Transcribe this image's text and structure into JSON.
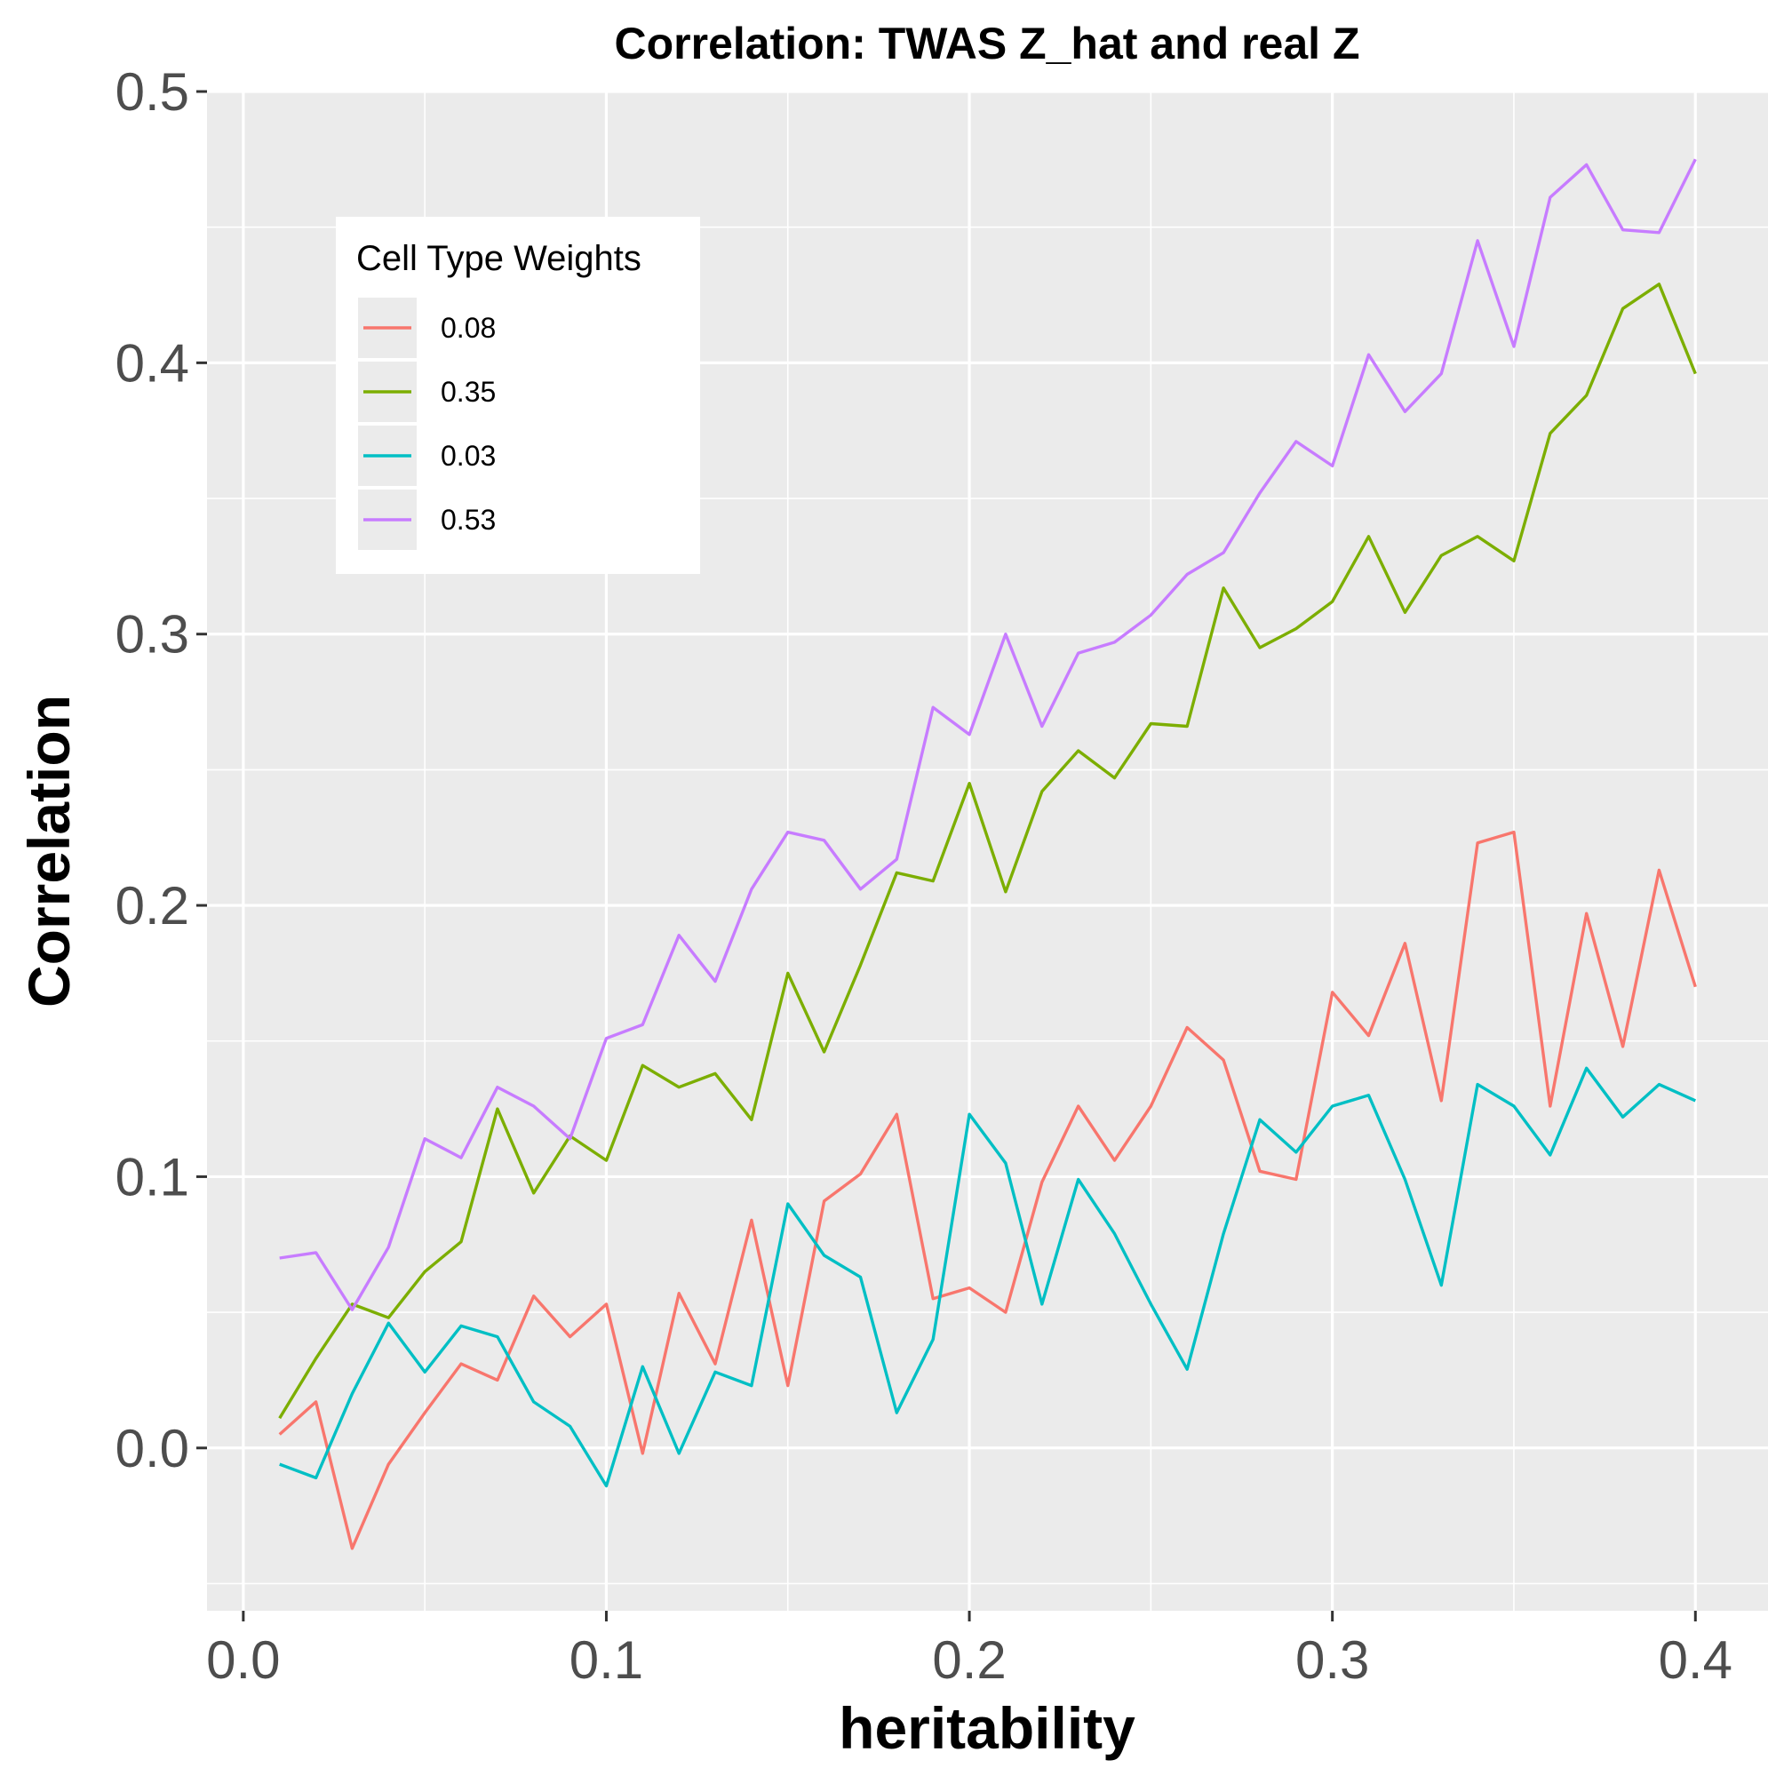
{
  "chart_data": {
    "type": "line",
    "title": "Correlation: TWAS Z_hat and real Z",
    "xlabel": "heritability",
    "ylabel": "Correlation",
    "xlim": [
      -0.01,
      0.42
    ],
    "ylim": [
      -0.06,
      0.5
    ],
    "x_ticks": [
      0.0,
      0.1,
      0.2,
      0.3,
      0.4
    ],
    "x_tick_labels": [
      "0.0",
      "0.1",
      "0.2",
      "0.3",
      "0.4"
    ],
    "y_ticks": [
      0.0,
      0.1,
      0.2,
      0.3,
      0.4,
      0.5
    ],
    "y_tick_labels": [
      "0.0",
      "0.1",
      "0.2",
      "0.3",
      "0.4",
      "0.5"
    ],
    "grid": true,
    "legend": {
      "title": "Cell Type Weights",
      "placement": "top-left inside"
    },
    "x": [
      0.01,
      0.02,
      0.03,
      0.04,
      0.05,
      0.06,
      0.07,
      0.08,
      0.09,
      0.1,
      0.11,
      0.12,
      0.13,
      0.14,
      0.15,
      0.16,
      0.17,
      0.18,
      0.19,
      0.2,
      0.21,
      0.22,
      0.23,
      0.24,
      0.25,
      0.26,
      0.27,
      0.28,
      0.29,
      0.3,
      0.31,
      0.32,
      0.33,
      0.34,
      0.35,
      0.36,
      0.37,
      0.38,
      0.39,
      0.4
    ],
    "series": [
      {
        "name": "0.08",
        "color": "#F8766D",
        "values": [
          0.005,
          0.017,
          -0.037,
          -0.006,
          0.013,
          0.031,
          0.025,
          0.056,
          0.041,
          0.053,
          -0.002,
          0.057,
          0.031,
          0.084,
          0.023,
          0.091,
          0.101,
          0.123,
          0.055,
          0.059,
          0.05,
          0.098,
          0.126,
          0.106,
          0.126,
          0.155,
          0.143,
          0.102,
          0.099,
          0.168,
          0.152,
          0.186,
          0.128,
          0.223,
          0.227,
          0.126,
          0.197,
          0.148,
          0.213,
          0.17
        ]
      },
      {
        "name": "0.35",
        "color": "#7CAE00",
        "values": [
          0.011,
          0.033,
          0.053,
          0.048,
          0.065,
          0.076,
          0.125,
          0.094,
          0.115,
          0.106,
          0.141,
          0.133,
          0.138,
          0.121,
          0.175,
          0.146,
          0.178,
          0.212,
          0.209,
          0.245,
          0.205,
          0.242,
          0.257,
          0.247,
          0.267,
          0.266,
          0.317,
          0.295,
          0.302,
          0.312,
          0.336,
          0.308,
          0.329,
          0.336,
          0.327,
          0.374,
          0.388,
          0.42,
          0.429,
          0.396
        ]
      },
      {
        "name": "0.03",
        "color": "#00BFC4",
        "values": [
          -0.006,
          -0.011,
          0.02,
          0.046,
          0.028,
          0.045,
          0.041,
          0.017,
          0.008,
          -0.014,
          0.03,
          -0.002,
          0.028,
          0.023,
          0.09,
          0.071,
          0.063,
          0.013,
          0.04,
          0.123,
          0.105,
          0.053,
          0.099,
          0.079,
          0.053,
          0.029,
          0.079,
          0.121,
          0.109,
          0.126,
          0.13,
          0.099,
          0.06,
          0.134,
          0.126,
          0.108,
          0.14,
          0.122,
          0.134,
          0.128
        ]
      },
      {
        "name": "0.53",
        "color": "#C77CFF",
        "values": [
          0.07,
          0.072,
          0.051,
          0.074,
          0.114,
          0.107,
          0.133,
          0.126,
          0.114,
          0.151,
          0.156,
          0.189,
          0.172,
          0.206,
          0.227,
          0.224,
          0.206,
          0.217,
          0.273,
          0.263,
          0.3,
          0.266,
          0.293,
          0.297,
          0.307,
          0.322,
          0.33,
          0.352,
          0.371,
          0.362,
          0.403,
          0.382,
          0.396,
          0.445,
          0.406,
          0.461,
          0.473,
          0.449,
          0.448,
          0.475
        ]
      }
    ]
  }
}
